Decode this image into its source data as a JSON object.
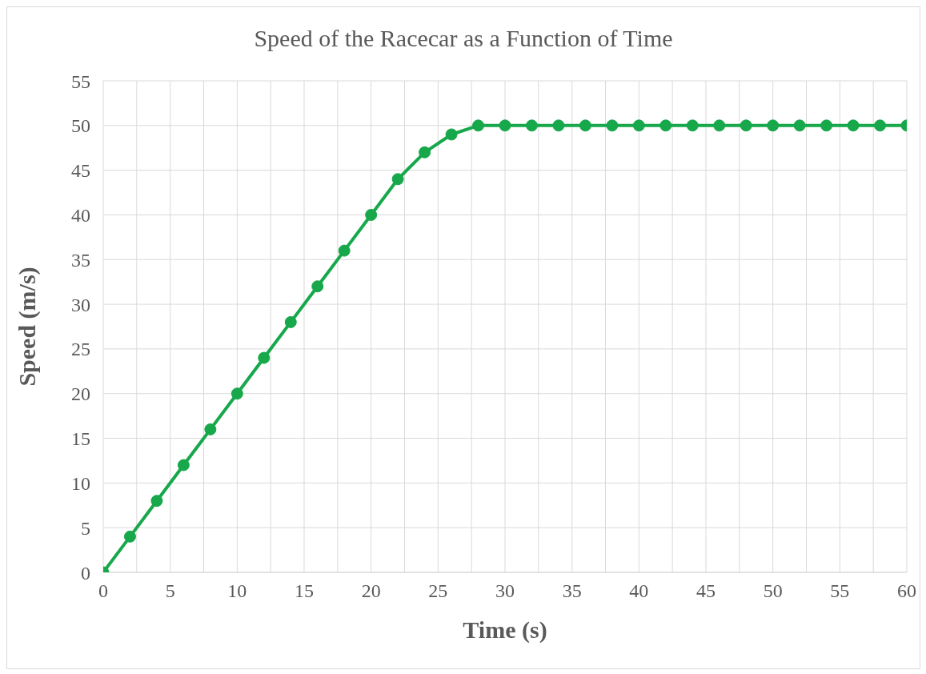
{
  "chart_data": {
    "type": "line",
    "title": "Speed of the Racecar as a Function of Time",
    "xlabel": "Time (s)",
    "ylabel": "Speed (m/s)",
    "x": [
      0,
      2,
      4,
      6,
      8,
      10,
      12,
      14,
      16,
      18,
      20,
      22,
      24,
      26,
      28,
      30,
      32,
      34,
      36,
      38,
      40,
      42,
      44,
      46,
      48,
      50,
      52,
      54,
      56,
      58,
      60
    ],
    "series": [
      {
        "color": "#17a84b",
        "values": [
          0,
          4,
          8,
          12,
          16,
          20,
          24,
          28,
          32,
          36,
          40,
          44,
          47,
          49,
          50,
          50,
          50,
          50,
          50,
          50,
          50,
          50,
          50,
          50,
          50,
          50,
          50,
          50,
          50,
          50,
          50
        ]
      }
    ],
    "xlim": [
      0,
      60
    ],
    "xticks": [
      0,
      {
        "value": 2.5,
        "label": null
      },
      5,
      {
        "value": 7.5,
        "label": null
      },
      10,
      {
        "value": 12.5,
        "label": null
      },
      15,
      {
        "value": 17.5,
        "label": null
      },
      20,
      {
        "value": 22.5,
        "label": null
      },
      25,
      {
        "value": 27.5,
        "label": null
      },
      30,
      {
        "value": 32.5,
        "label": null
      },
      35,
      {
        "value": 37.5,
        "label": null
      },
      40,
      {
        "value": 42.5,
        "label": null
      },
      45,
      {
        "value": 47.5,
        "label": null
      },
      50,
      {
        "value": 52.5,
        "label": null
      },
      55,
      {
        "value": 57.5,
        "label": null
      },
      60
    ],
    "ylim": [
      0,
      55
    ],
    "yticks": [
      0,
      5,
      10,
      15,
      20,
      25,
      30,
      35,
      40,
      45,
      50,
      55
    ],
    "grid": true,
    "marker": "circle",
    "line_style": "solid",
    "legend": false
  }
}
